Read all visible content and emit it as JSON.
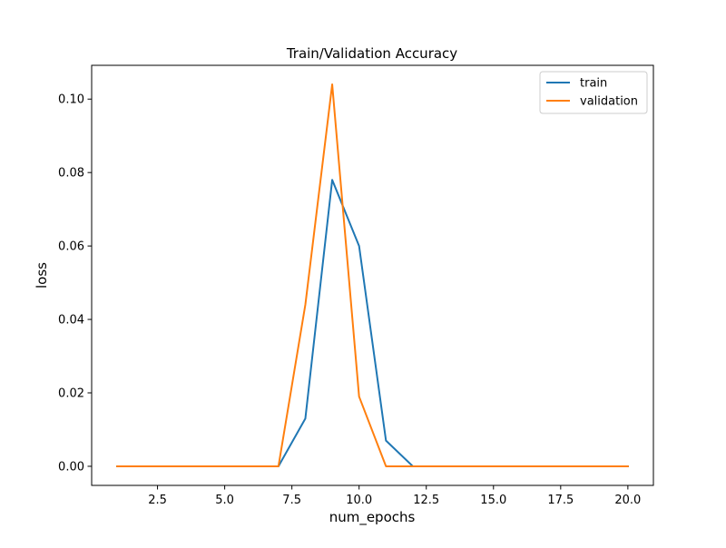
{
  "chart_data": {
    "type": "line",
    "title": "Train/Validation Accuracy",
    "xlabel": "num_epochs",
    "ylabel": "loss",
    "xlim": [
      0.05,
      20.95
    ],
    "ylim": [
      -0.0052,
      0.1092
    ],
    "x_ticks": [
      2.5,
      5.0,
      7.5,
      10.0,
      12.5,
      15.0,
      17.5,
      20.0
    ],
    "x_tick_labels": [
      "2.5",
      "5.0",
      "7.5",
      "10.0",
      "12.5",
      "15.0",
      "17.5",
      "20.0"
    ],
    "y_ticks": [
      0.0,
      0.02,
      0.04,
      0.06,
      0.08,
      0.1
    ],
    "y_tick_labels": [
      "0.00",
      "0.02",
      "0.04",
      "0.06",
      "0.08",
      "0.10"
    ],
    "grid": false,
    "legend_position": "upper right",
    "x": [
      1,
      2,
      3,
      4,
      5,
      6,
      7,
      8,
      9,
      10,
      11,
      12,
      13,
      14,
      15,
      16,
      17,
      18,
      19,
      20
    ],
    "series": [
      {
        "name": "train",
        "color": "#1f77b4",
        "values": [
          0,
          0,
          0,
          0,
          0,
          0,
          0,
          0.013,
          0.078,
          0.06,
          0.007,
          0,
          0,
          0,
          0,
          0,
          0,
          0,
          0,
          0
        ]
      },
      {
        "name": "validation",
        "color": "#ff7f0e",
        "values": [
          0,
          0,
          0,
          0,
          0,
          0,
          0,
          0.044,
          0.104,
          0.019,
          0,
          0,
          0,
          0,
          0,
          0,
          0,
          0,
          0,
          0
        ]
      }
    ]
  }
}
